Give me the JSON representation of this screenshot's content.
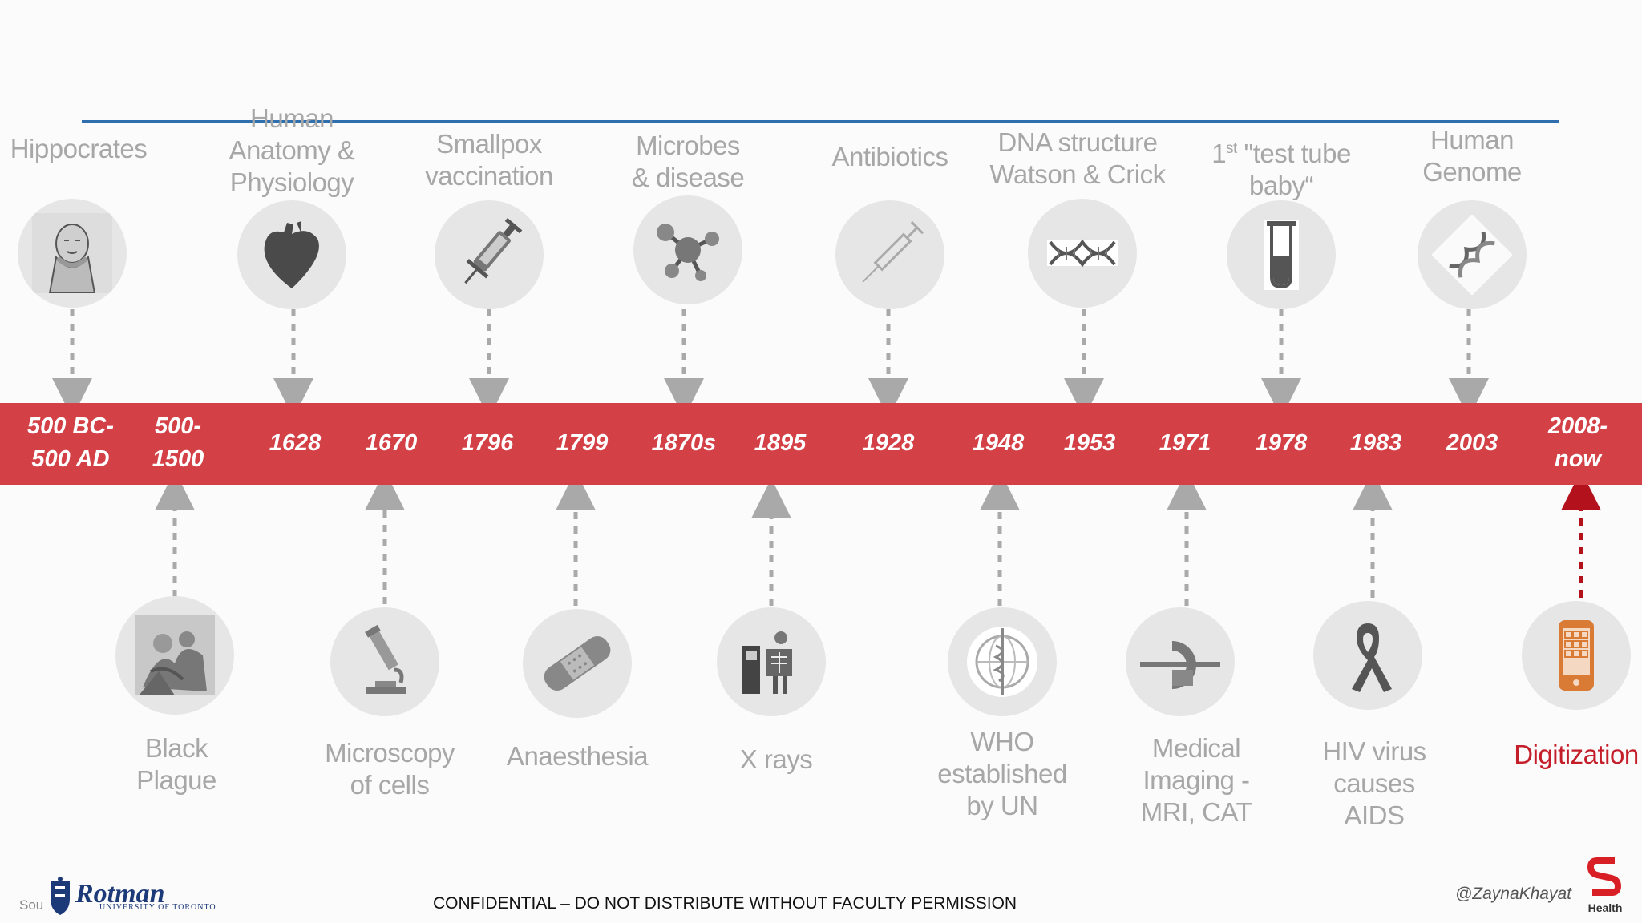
{
  "years": [
    "500 BC-\n500 AD",
    "500-\n1500",
    "1628",
    "1670",
    "1796",
    "1799",
    "1870s",
    "1895",
    "1928",
    "1948",
    "1953",
    "1971",
    "1978",
    "1983",
    "2003",
    "2008-\nnow"
  ],
  "top_events": [
    {
      "label": "Hippocrates",
      "icon": "hippocrates-bust-icon"
    },
    {
      "label": "Human\nAnatomy &\nPhysiology",
      "icon": "heart-icon"
    },
    {
      "label": "Smallpox\nvaccination",
      "icon": "syringe-icon"
    },
    {
      "label": "Microbes\n& disease",
      "icon": "molecule-icon"
    },
    {
      "label": "Antibiotics",
      "icon": "needle-icon"
    },
    {
      "label": "DNA structure\nWatson & Crick",
      "icon": "dna-helix-icon"
    },
    {
      "label_pre": "1",
      "label_sup": "st",
      "label_post": " \"test tube\nbaby“",
      "icon": "test-tube-icon"
    },
    {
      "label": "Human\nGenome",
      "icon": "genome-icon"
    }
  ],
  "bottom_events": [
    {
      "label": "Black\nPlague",
      "icon": "plague-engraving-icon"
    },
    {
      "label": "Microscopy\nof cells",
      "icon": "microscope-icon"
    },
    {
      "label": "Anaesthesia",
      "icon": "bandage-icon"
    },
    {
      "label": "X rays",
      "icon": "xray-machine-icon"
    },
    {
      "label": "WHO\nestablished\nby UN",
      "icon": "who-emblem-icon"
    },
    {
      "label": "Medical\nImaging -\nMRI, CAT",
      "icon": "mri-scanner-icon"
    },
    {
      "label": "HIV virus\ncauses\nAIDS",
      "icon": "awareness-ribbon-icon"
    },
    {
      "label": "Digitization",
      "icon": "mobile-phone-icon"
    }
  ],
  "footer": {
    "confidential": "CONFIDENTIAL – DO NOT DISTRIBUTE WITHOUT FACULTY PERMISSION",
    "handle": "@ZaynaKhayat",
    "logo_name": "Rotman",
    "logo_sub": "UNIVERSITY OF TORONTO",
    "source_prefix": "Sou",
    "health_label": "Health"
  },
  "colors": {
    "band": "#d34046",
    "line": "#2f6fae",
    "grey_text": "#a7a7a7",
    "highlight": "#c41e2a"
  }
}
